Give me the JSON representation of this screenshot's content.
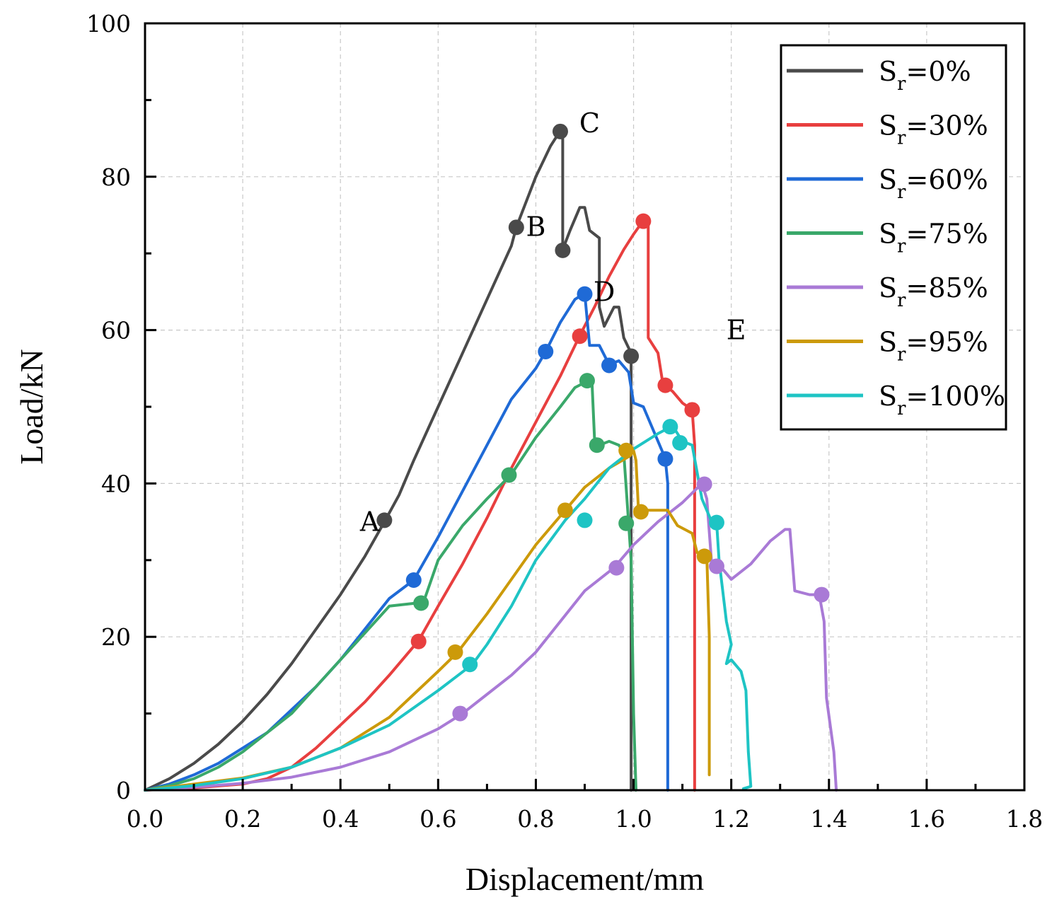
{
  "chart_data": {
    "type": "line",
    "title": "",
    "xlabel": "Displacement/mm",
    "ylabel": "Load/kN",
    "xlim": [
      0,
      1.8
    ],
    "ylim": [
      0,
      100
    ],
    "xticks": [
      0.0,
      0.2,
      0.4,
      0.6,
      0.8,
      1.0,
      1.2,
      1.4,
      1.6,
      1.8
    ],
    "xtick_labels": [
      "0.0",
      "0.2",
      "0.4",
      "0.6",
      "0.8",
      "1.0",
      "1.2",
      "1.4",
      "1.6",
      "1.8"
    ],
    "yticks": [
      0,
      20,
      40,
      60,
      80,
      100
    ],
    "ytick_labels": [
      "0",
      "20",
      "40",
      "60",
      "80",
      "100"
    ],
    "grid": true,
    "legend_position": "top-right",
    "annotations": [
      {
        "text": "A",
        "x": 0.46,
        "y": 35
      },
      {
        "text": "B",
        "x": 0.8,
        "y": 73.5
      },
      {
        "text": "C",
        "x": 0.91,
        "y": 87
      },
      {
        "text": "D",
        "x": 0.94,
        "y": 65
      },
      {
        "text": "E",
        "x": 1.21,
        "y": 60
      }
    ],
    "series": [
      {
        "name": "Sr=0%",
        "label_main": "S",
        "label_sub": "r",
        "label_rest": "=0%",
        "color": "#4a4a4a",
        "points": [
          [
            0,
            0
          ],
          [
            0.05,
            1.5
          ],
          [
            0.1,
            3.5
          ],
          [
            0.15,
            6
          ],
          [
            0.2,
            9
          ],
          [
            0.25,
            12.5
          ],
          [
            0.3,
            16.5
          ],
          [
            0.35,
            21
          ],
          [
            0.4,
            25.5
          ],
          [
            0.45,
            30.5
          ],
          [
            0.49,
            35
          ],
          [
            0.52,
            38.5
          ],
          [
            0.55,
            43
          ],
          [
            0.6,
            50
          ],
          [
            0.65,
            57
          ],
          [
            0.7,
            64
          ],
          [
            0.75,
            71
          ],
          [
            0.76,
            73.4
          ],
          [
            0.8,
            80
          ],
          [
            0.83,
            84
          ],
          [
            0.85,
            86
          ],
          [
            0.855,
            86
          ],
          [
            0.855,
            70.5
          ],
          [
            0.87,
            73
          ],
          [
            0.89,
            76
          ],
          [
            0.9,
            76
          ],
          [
            0.91,
            73
          ],
          [
            0.93,
            72
          ],
          [
            0.93,
            63
          ],
          [
            0.94,
            60.5
          ],
          [
            0.96,
            63
          ],
          [
            0.97,
            63
          ],
          [
            0.98,
            59
          ],
          [
            0.995,
            57
          ],
          [
            0.995,
            0
          ]
        ],
        "markers": [
          [
            0.49,
            35.2
          ],
          [
            0.76,
            73.4
          ],
          [
            0.85,
            85.9
          ],
          [
            0.855,
            70.4
          ],
          [
            0.995,
            56.6
          ]
        ]
      },
      {
        "name": "Sr=30%",
        "label_main": "S",
        "label_sub": "r",
        "label_rest": "=30%",
        "color": "#e83f3f",
        "points": [
          [
            0,
            0
          ],
          [
            0.1,
            0.3
          ],
          [
            0.2,
            0.8
          ],
          [
            0.25,
            1.5
          ],
          [
            0.3,
            3
          ],
          [
            0.35,
            5.5
          ],
          [
            0.4,
            8.5
          ],
          [
            0.45,
            11.5
          ],
          [
            0.5,
            15
          ],
          [
            0.56,
            19.5
          ],
          [
            0.6,
            24
          ],
          [
            0.65,
            29.5
          ],
          [
            0.7,
            35.5
          ],
          [
            0.75,
            42
          ],
          [
            0.8,
            48
          ],
          [
            0.85,
            54
          ],
          [
            0.89,
            59.3
          ],
          [
            0.92,
            63
          ],
          [
            0.95,
            67
          ],
          [
            0.98,
            70.5
          ],
          [
            1.0,
            72.5
          ],
          [
            1.02,
            74.3
          ],
          [
            1.03,
            74
          ],
          [
            1.03,
            59
          ],
          [
            1.05,
            57
          ],
          [
            1.06,
            53
          ],
          [
            1.08,
            52
          ],
          [
            1.1,
            50.5
          ],
          [
            1.12,
            49.6
          ],
          [
            1.125,
            45
          ],
          [
            1.125,
            0
          ]
        ],
        "markers": [
          [
            0.56,
            19.4
          ],
          [
            0.89,
            59.2
          ],
          [
            1.02,
            74.2
          ],
          [
            1.065,
            52.8
          ],
          [
            1.12,
            49.6
          ]
        ]
      },
      {
        "name": "Sr=60%",
        "label_main": "S",
        "label_sub": "r",
        "label_rest": "=60%",
        "color": "#1f6ad6",
        "points": [
          [
            0,
            0
          ],
          [
            0.05,
            0.8
          ],
          [
            0.1,
            2
          ],
          [
            0.15,
            3.5
          ],
          [
            0.2,
            5.5
          ],
          [
            0.25,
            7.5
          ],
          [
            0.3,
            10.5
          ],
          [
            0.35,
            13.5
          ],
          [
            0.4,
            17
          ],
          [
            0.45,
            21
          ],
          [
            0.5,
            25
          ],
          [
            0.55,
            27.4
          ],
          [
            0.6,
            33
          ],
          [
            0.65,
            39
          ],
          [
            0.7,
            45
          ],
          [
            0.75,
            51
          ],
          [
            0.8,
            55
          ],
          [
            0.82,
            57.2
          ],
          [
            0.85,
            61
          ],
          [
            0.88,
            64
          ],
          [
            0.9,
            64.8
          ],
          [
            0.91,
            58
          ],
          [
            0.93,
            58
          ],
          [
            0.95,
            55.5
          ],
          [
            0.97,
            56
          ],
          [
            0.99,
            54.5
          ],
          [
            1.0,
            50.5
          ],
          [
            1.02,
            50
          ],
          [
            1.04,
            47
          ],
          [
            1.06,
            44
          ],
          [
            1.065,
            43.2
          ],
          [
            1.07,
            40
          ],
          [
            1.07,
            0
          ]
        ],
        "markers": [
          [
            0.55,
            27.4
          ],
          [
            0.82,
            57.2
          ],
          [
            0.9,
            64.7
          ],
          [
            0.95,
            55.4
          ],
          [
            1.065,
            43.2
          ]
        ]
      },
      {
        "name": "Sr=75%",
        "label_main": "S",
        "label_sub": "r",
        "label_rest": "=75%",
        "color": "#3aa86a",
        "points": [
          [
            0,
            0
          ],
          [
            0.05,
            0.6
          ],
          [
            0.1,
            1.5
          ],
          [
            0.15,
            3
          ],
          [
            0.2,
            5
          ],
          [
            0.25,
            7.5
          ],
          [
            0.3,
            10
          ],
          [
            0.35,
            13.5
          ],
          [
            0.4,
            17
          ],
          [
            0.45,
            20.5
          ],
          [
            0.5,
            24
          ],
          [
            0.57,
            24.5
          ],
          [
            0.6,
            30
          ],
          [
            0.65,
            34.5
          ],
          [
            0.7,
            38
          ],
          [
            0.75,
            41.2
          ],
          [
            0.8,
            46
          ],
          [
            0.85,
            50
          ],
          [
            0.88,
            52.5
          ],
          [
            0.91,
            53.5
          ],
          [
            0.915,
            53
          ],
          [
            0.92,
            46
          ],
          [
            0.93,
            45
          ],
          [
            0.95,
            45.5
          ],
          [
            0.97,
            45
          ],
          [
            0.98,
            44
          ],
          [
            0.99,
            34.8
          ],
          [
            0.995,
            30
          ],
          [
            1.0,
            10
          ],
          [
            1.005,
            0
          ]
        ],
        "markers": [
          [
            0.565,
            24.4
          ],
          [
            0.745,
            41.1
          ],
          [
            0.905,
            53.4
          ],
          [
            0.925,
            45.0
          ],
          [
            0.985,
            34.8
          ]
        ]
      },
      {
        "name": "Sr=85%",
        "label_main": "S",
        "label_sub": "r",
        "label_rest": "=85%",
        "color": "#a97ad6",
        "points": [
          [
            0,
            0
          ],
          [
            0.1,
            0.4
          ],
          [
            0.2,
            0.9
          ],
          [
            0.3,
            1.7
          ],
          [
            0.4,
            3
          ],
          [
            0.5,
            5
          ],
          [
            0.6,
            8
          ],
          [
            0.65,
            10
          ],
          [
            0.7,
            12.5
          ],
          [
            0.75,
            15
          ],
          [
            0.8,
            18
          ],
          [
            0.85,
            22
          ],
          [
            0.9,
            26
          ],
          [
            0.96,
            29
          ],
          [
            1.0,
            32
          ],
          [
            1.05,
            35
          ],
          [
            1.1,
            37.5
          ],
          [
            1.14,
            40
          ],
          [
            1.15,
            38
          ],
          [
            1.16,
            29.5
          ],
          [
            1.18,
            29
          ],
          [
            1.2,
            27.5
          ],
          [
            1.24,
            29.5
          ],
          [
            1.28,
            32.5
          ],
          [
            1.31,
            34
          ],
          [
            1.32,
            34
          ],
          [
            1.33,
            26
          ],
          [
            1.36,
            25.5
          ],
          [
            1.38,
            25.5
          ],
          [
            1.39,
            22
          ],
          [
            1.395,
            12
          ],
          [
            1.41,
            5
          ],
          [
            1.415,
            0
          ]
        ],
        "markers": [
          [
            0.645,
            10.0
          ],
          [
            0.965,
            29.0
          ],
          [
            1.145,
            39.9
          ],
          [
            1.17,
            29.2
          ],
          [
            1.385,
            25.5
          ]
        ]
      },
      {
        "name": "Sr=95%",
        "label_main": "S",
        "label_sub": "r",
        "label_rest": "=95%",
        "color": "#cc9a0a",
        "points": [
          [
            0,
            0
          ],
          [
            0.1,
            0.8
          ],
          [
            0.2,
            1.6
          ],
          [
            0.3,
            3
          ],
          [
            0.4,
            5.5
          ],
          [
            0.5,
            9.5
          ],
          [
            0.55,
            12.5
          ],
          [
            0.6,
            15.5
          ],
          [
            0.64,
            18
          ],
          [
            0.7,
            23
          ],
          [
            0.75,
            27.5
          ],
          [
            0.8,
            32
          ],
          [
            0.86,
            36.5
          ],
          [
            0.9,
            39.5
          ],
          [
            0.95,
            42
          ],
          [
            0.99,
            43.5
          ],
          [
            1.0,
            44.3
          ],
          [
            1.005,
            43
          ],
          [
            1.01,
            36.5
          ],
          [
            1.03,
            36.5
          ],
          [
            1.07,
            36.5
          ],
          [
            1.09,
            34.5
          ],
          [
            1.12,
            33.5
          ],
          [
            1.13,
            31
          ],
          [
            1.15,
            30.5
          ],
          [
            1.155,
            20
          ],
          [
            1.155,
            2
          ]
        ],
        "markers": [
          [
            0.635,
            18.0
          ],
          [
            0.86,
            36.5
          ],
          [
            0.985,
            44.3
          ],
          [
            1.015,
            36.3
          ],
          [
            1.145,
            30.5
          ]
        ]
      },
      {
        "name": "Sr=100%",
        "label_main": "S",
        "label_sub": "r",
        "label_rest": "=100%",
        "color": "#1ec4c4",
        "points": [
          [
            0,
            0
          ],
          [
            0.1,
            0.6
          ],
          [
            0.2,
            1.5
          ],
          [
            0.3,
            3
          ],
          [
            0.4,
            5.5
          ],
          [
            0.5,
            8.5
          ],
          [
            0.6,
            13
          ],
          [
            0.67,
            16.4
          ],
          [
            0.7,
            19
          ],
          [
            0.75,
            24
          ],
          [
            0.8,
            30
          ],
          [
            0.86,
            35.2
          ],
          [
            0.9,
            38
          ],
          [
            0.95,
            42
          ],
          [
            1.0,
            44.5
          ],
          [
            1.05,
            46.5
          ],
          [
            1.08,
            47.5
          ],
          [
            1.1,
            45.5
          ],
          [
            1.12,
            45
          ],
          [
            1.14,
            38
          ],
          [
            1.16,
            35
          ],
          [
            1.17,
            35
          ],
          [
            1.175,
            30
          ],
          [
            1.19,
            22
          ],
          [
            1.2,
            19
          ],
          [
            1.19,
            16.5
          ],
          [
            1.2,
            17
          ],
          [
            1.22,
            15.5
          ],
          [
            1.23,
            13
          ],
          [
            1.235,
            5
          ],
          [
            1.24,
            0.5
          ],
          [
            1.225,
            0.2
          ]
        ],
        "markers": [
          [
            0.665,
            16.4
          ],
          [
            0.9,
            35.2
          ],
          [
            1.075,
            47.4
          ],
          [
            1.095,
            45.3
          ],
          [
            1.17,
            34.9
          ]
        ]
      }
    ]
  }
}
